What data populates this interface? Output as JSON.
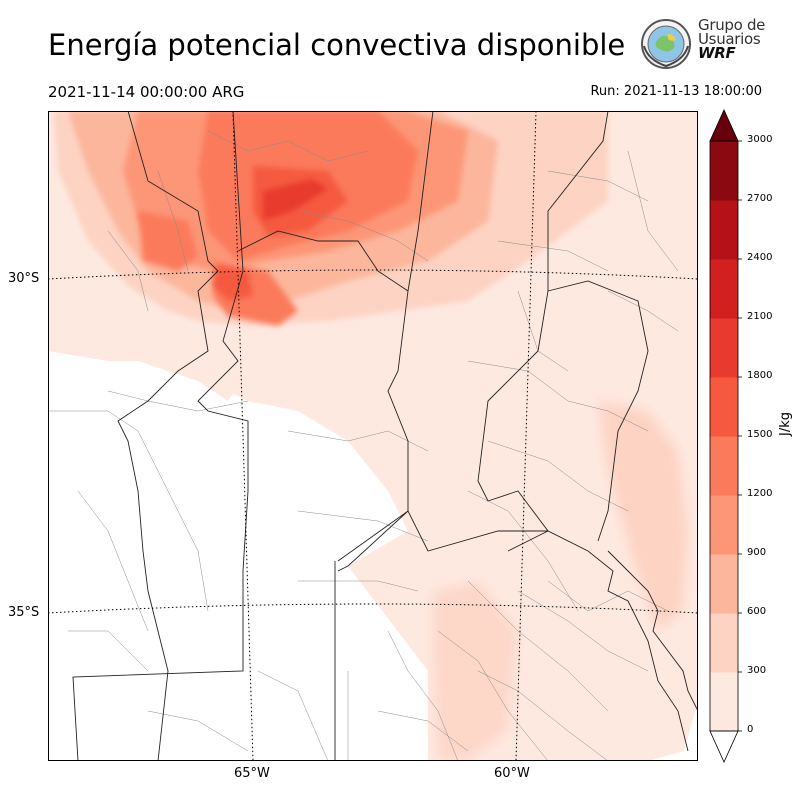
{
  "header": {
    "title": "Energía potencial convectiva disponible",
    "valid_time": "2021-11-14 00:00:00 ARG",
    "run_time": "Run: 2021-11-13 18:00:00"
  },
  "logo": {
    "line1": "Grupo de",
    "line2": "Usuarios",
    "line3": "WRF"
  },
  "map": {
    "lat_labels": [
      "30°S",
      "35°S"
    ],
    "lon_labels": [
      "65°W",
      "60°W"
    ]
  },
  "colorbar": {
    "unit": "J/kg",
    "ticks": [
      "0",
      "300",
      "600",
      "900",
      "1200",
      "1500",
      "1800",
      "2100",
      "2400",
      "2700",
      "3000"
    ],
    "levels": [
      0,
      300,
      600,
      900,
      1200,
      1500,
      1800,
      2100,
      2400,
      2700,
      3000
    ],
    "colors": [
      "#fee9e1",
      "#fdd3c3",
      "#fcb69c",
      "#fc9677",
      "#fb7a5b",
      "#f55a41",
      "#e83a2e",
      "#d21f20",
      "#b41218",
      "#8b0a12",
      "#67000d"
    ]
  }
}
